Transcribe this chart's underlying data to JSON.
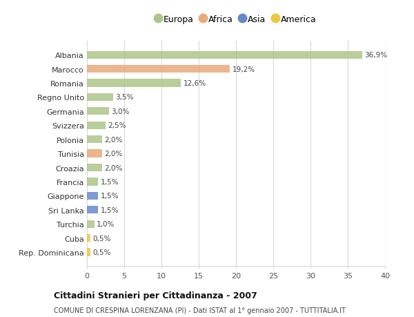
{
  "countries": [
    "Albania",
    "Marocco",
    "Romania",
    "Regno Unito",
    "Germania",
    "Svizzera",
    "Polonia",
    "Tunisia",
    "Croazia",
    "Francia",
    "Giappone",
    "Sri Lanka",
    "Turchia",
    "Cuba",
    "Rep. Dominicana"
  ],
  "values": [
    36.9,
    19.2,
    12.6,
    3.5,
    3.0,
    2.5,
    2.0,
    2.0,
    2.0,
    1.5,
    1.5,
    1.5,
    1.0,
    0.5,
    0.5
  ],
  "labels": [
    "36,9%",
    "19,2%",
    "12,6%",
    "3,5%",
    "3,0%",
    "2,5%",
    "2,0%",
    "2,0%",
    "2,0%",
    "1,5%",
    "1,5%",
    "1,5%",
    "1,0%",
    "0,5%",
    "0,5%"
  ],
  "continents": [
    "Europa",
    "Africa",
    "Europa",
    "Europa",
    "Europa",
    "Europa",
    "Europa",
    "Africa",
    "Europa",
    "Europa",
    "Asia",
    "Asia",
    "Europa",
    "America",
    "America"
  ],
  "colors": {
    "Europa": "#adc68a",
    "Africa": "#e8aa7a",
    "Asia": "#6688cc",
    "America": "#e8c840"
  },
  "legend_order": [
    "Europa",
    "Africa",
    "Asia",
    "America"
  ],
  "title": "Cittadini Stranieri per Cittadinanza - 2007",
  "subtitle": "COMUNE DI CRESPINA LORENZANA (PI) - Dati ISTAT al 1° gennaio 2007 - TUTTITALIA.IT",
  "xlim": [
    0,
    40
  ],
  "xticks": [
    0,
    5,
    10,
    15,
    20,
    25,
    30,
    35,
    40
  ],
  "background_color": "#ffffff",
  "grid_color": "#d8d8d8",
  "bar_height": 0.55
}
